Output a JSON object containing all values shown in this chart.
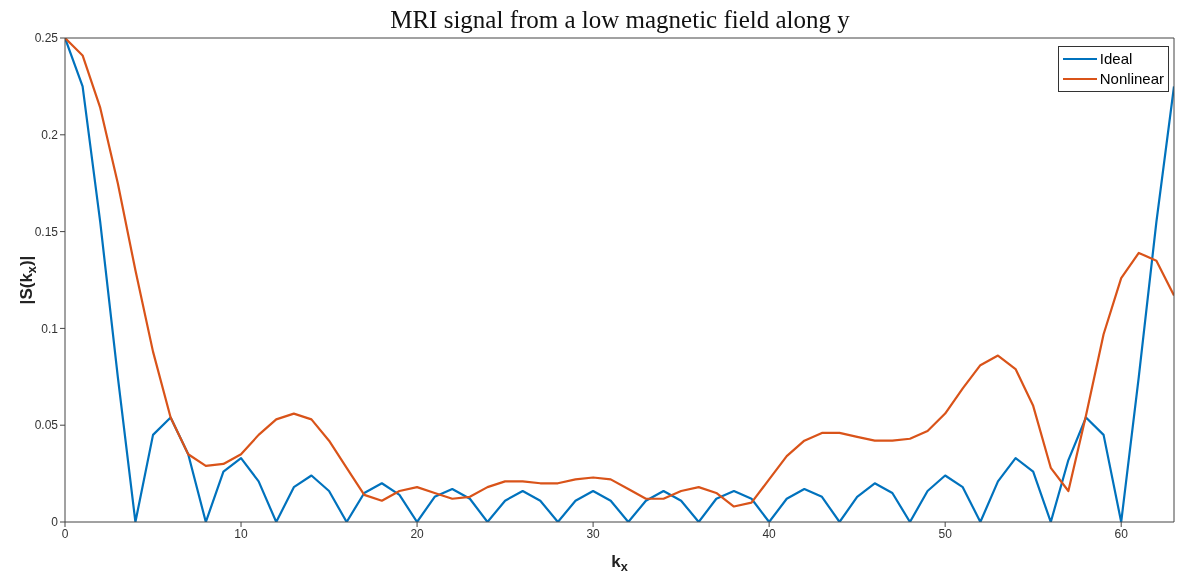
{
  "chart_data": {
    "type": "line",
    "title": "MRI signal from a low magnetic field along y",
    "xlabel": "k$_{x}$",
    "ylabel": "|S(k$_{x}$)|",
    "x": [
      0,
      1,
      2,
      3,
      4,
      5,
      6,
      7,
      8,
      9,
      10,
      11,
      12,
      13,
      14,
      15,
      16,
      17,
      18,
      19,
      20,
      21,
      22,
      23,
      24,
      25,
      26,
      27,
      28,
      29,
      30,
      31,
      32,
      33,
      34,
      35,
      36,
      37,
      38,
      39,
      40,
      41,
      42,
      43,
      44,
      45,
      46,
      47,
      48,
      49,
      50,
      51,
      52,
      53,
      54,
      55,
      56,
      57,
      58,
      59,
      60,
      61,
      62,
      63
    ],
    "series": [
      {
        "name": "Ideal",
        "color": "#0072bd",
        "values": [
          0.25,
          0.225,
          0.155,
          0.075,
          0,
          0.045,
          0.054,
          0.035,
          0,
          0.026,
          0.033,
          0.021,
          0,
          0.018,
          0.024,
          0.016,
          0,
          0.015,
          0.02,
          0.014,
          0,
          0.013,
          0.017,
          0.012,
          0,
          0.011,
          0.016,
          0.011,
          0,
          0.011,
          0.016,
          0.011,
          0,
          0.011,
          0.016,
          0.011,
          0,
          0.012,
          0.016,
          0.012,
          0,
          0.012,
          0.017,
          0.013,
          0,
          0.013,
          0.02,
          0.015,
          0,
          0.016,
          0.024,
          0.018,
          0,
          0.021,
          0.033,
          0.026,
          0,
          0.032,
          0.054,
          0.045,
          0,
          0.075,
          0.155,
          0.225
        ]
      },
      {
        "name": "Nonlinear",
        "color": "#d95319",
        "values": [
          0.25,
          0.241,
          0.214,
          0.175,
          0.13,
          0.088,
          0.054,
          0.035,
          0.029,
          0.03,
          0.035,
          0.045,
          0.053,
          0.056,
          0.053,
          0.042,
          0.028,
          0.014,
          0.011,
          0.016,
          0.018,
          0.015,
          0.012,
          0.013,
          0.018,
          0.021,
          0.021,
          0.02,
          0.02,
          0.022,
          0.023,
          0.022,
          0.017,
          0.012,
          0.012,
          0.016,
          0.018,
          0.015,
          0.008,
          0.01,
          0.022,
          0.034,
          0.042,
          0.046,
          0.046,
          0.044,
          0.042,
          0.042,
          0.043,
          0.047,
          0.056,
          0.069,
          0.081,
          0.086,
          0.079,
          0.06,
          0.028,
          0.016,
          0.055,
          0.097,
          0.126,
          0.139,
          0.135,
          0.117
        ]
      }
    ],
    "xlim": [
      0,
      63
    ],
    "xticks": [
      0,
      10,
      20,
      30,
      40,
      50,
      60
    ],
    "ylim": [
      0,
      0.25
    ],
    "yticks": [
      0,
      0.05,
      0.1,
      0.15,
      0.2,
      0.25
    ],
    "legend": "top right",
    "grid": false,
    "marker": "none",
    "line_style": "solid"
  }
}
